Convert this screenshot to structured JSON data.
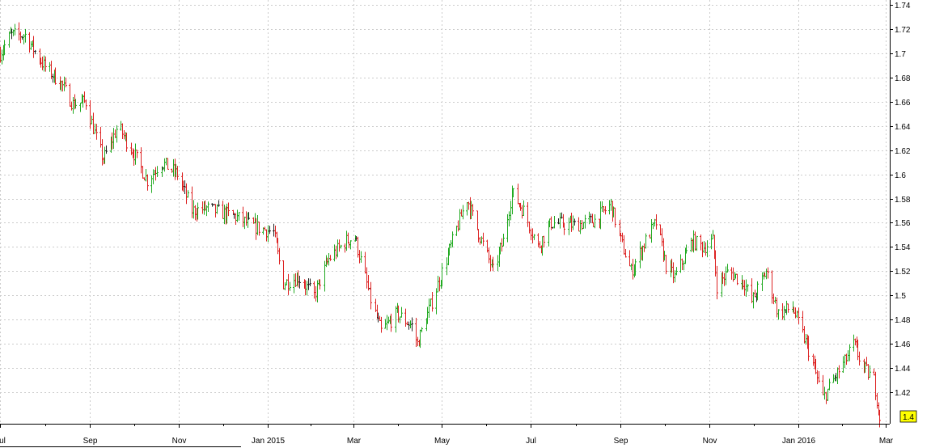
{
  "chart_data": {
    "type": "ohlc",
    "title": "",
    "xlabel": "",
    "ylabel": "",
    "x_range": [
      "2014-07-01",
      "2016-03-04"
    ],
    "ylim": [
      1.394,
      1.744
    ],
    "y_axis_side": "right",
    "y_ticks": [
      1.42,
      1.44,
      1.46,
      1.48,
      1.5,
      1.52,
      1.54,
      1.56,
      1.58,
      1.6,
      1.62,
      1.64,
      1.66,
      1.68,
      1.7,
      1.72,
      1.74
    ],
    "y_tick_labels": [
      "1.42",
      "1.44",
      "1.46",
      "1.48",
      "1.5",
      "1.52",
      "1.54",
      "1.56",
      "1.58",
      "1.6",
      "1.62",
      "1.64",
      "1.66",
      "1.68",
      "1.7",
      "1.72",
      "1.74"
    ],
    "x_ticks": [
      "2014-07-01",
      "2014-09-01",
      "2014-11-01",
      "2015-01-01",
      "2015-03-01",
      "2015-05-01",
      "2015-07-01",
      "2015-09-01",
      "2015-11-01",
      "2016-01-01",
      "2016-03-01"
    ],
    "x_tick_labels": [
      "Jul",
      "Sep",
      "Nov",
      "Jan 2015",
      "Mar",
      "May",
      "Jul",
      "Sep",
      "Nov",
      "Jan 2016",
      "Mar"
    ],
    "last_value": "1.4",
    "grid": true,
    "colors": {
      "up": "#22aa22",
      "down": "#dd2222",
      "neutral": "#222222",
      "grid": "#cccccc",
      "badge": "#ffff00"
    },
    "close_anchors": [
      [
        "2014-07-01",
        1.7
      ],
      [
        "2014-07-08",
        1.715
      ],
      [
        "2014-07-18",
        1.715
      ],
      [
        "2014-07-31",
        1.69
      ],
      [
        "2014-08-12",
        1.675
      ],
      [
        "2014-08-20",
        1.658
      ],
      [
        "2014-08-29",
        1.66
      ],
      [
        "2014-09-05",
        1.63
      ],
      [
        "2014-09-10",
        1.612
      ],
      [
        "2014-09-20",
        1.64
      ],
      [
        "2014-10-02",
        1.615
      ],
      [
        "2014-10-10",
        1.595
      ],
      [
        "2014-10-20",
        1.61
      ],
      [
        "2014-10-31",
        1.6
      ],
      [
        "2014-11-10",
        1.57
      ],
      [
        "2014-11-20",
        1.572
      ],
      [
        "2014-12-01",
        1.568
      ],
      [
        "2014-12-10",
        1.565
      ],
      [
        "2014-12-20",
        1.558
      ],
      [
        "2015-01-05",
        1.552
      ],
      [
        "2015-01-12",
        1.51
      ],
      [
        "2015-01-22",
        1.515
      ],
      [
        "2015-02-02",
        1.5
      ],
      [
        "2015-02-12",
        1.53
      ],
      [
        "2015-02-24",
        1.545
      ],
      [
        "2015-03-02",
        1.548
      ],
      [
        "2015-03-12",
        1.5
      ],
      [
        "2015-03-20",
        1.47
      ],
      [
        "2015-03-31",
        1.485
      ],
      [
        "2015-04-10",
        1.475
      ],
      [
        "2015-04-14",
        1.46
      ],
      [
        "2015-04-24",
        1.495
      ],
      [
        "2015-05-04",
        1.53
      ],
      [
        "2015-05-18",
        1.58
      ],
      [
        "2015-05-25",
        1.555
      ],
      [
        "2015-06-05",
        1.52
      ],
      [
        "2015-06-12",
        1.545
      ],
      [
        "2015-06-18",
        1.585
      ],
      [
        "2015-06-26",
        1.57
      ],
      [
        "2015-07-06",
        1.54
      ],
      [
        "2015-07-15",
        1.56
      ],
      [
        "2015-07-31",
        1.558
      ],
      [
        "2015-08-14",
        1.562
      ],
      [
        "2015-08-25",
        1.575
      ],
      [
        "2015-09-01",
        1.545
      ],
      [
        "2015-09-08",
        1.52
      ],
      [
        "2015-09-18",
        1.545
      ],
      [
        "2015-09-25",
        1.56
      ],
      [
        "2015-10-02",
        1.525
      ],
      [
        "2015-10-08",
        1.515
      ],
      [
        "2015-10-20",
        1.545
      ],
      [
        "2015-10-28",
        1.54
      ],
      [
        "2015-11-03",
        1.545
      ],
      [
        "2015-11-06",
        1.508
      ],
      [
        "2015-11-14",
        1.52
      ],
      [
        "2015-11-25",
        1.51
      ],
      [
        "2015-11-30",
        1.495
      ],
      [
        "2015-12-10",
        1.52
      ],
      [
        "2015-12-18",
        1.485
      ],
      [
        "2015-12-28",
        1.49
      ],
      [
        "2016-01-08",
        1.455
      ],
      [
        "2016-01-18",
        1.415
      ],
      [
        "2016-01-25",
        1.43
      ],
      [
        "2016-02-02",
        1.445
      ],
      [
        "2016-02-08",
        1.46
      ],
      [
        "2016-02-15",
        1.44
      ],
      [
        "2016-02-22",
        1.43
      ],
      [
        "2016-02-26",
        1.4
      ]
    ]
  }
}
